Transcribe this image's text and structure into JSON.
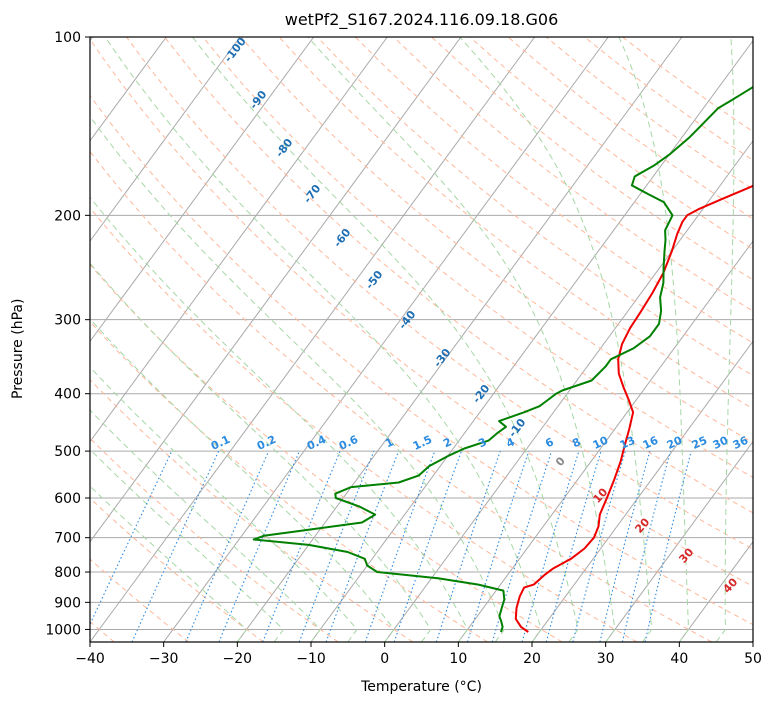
{
  "chart_data": {
    "type": "line",
    "title": "wetPf2_S167.2024.116.09.18.G06",
    "xlabel": "Temperature (°C)",
    "ylabel": "Pressure (hPa)",
    "xlim": [
      -40,
      50
    ],
    "ylim": [
      1050,
      100
    ],
    "yscale": "log",
    "x_ticks": [
      -40,
      -30,
      -20,
      -10,
      0,
      10,
      20,
      30,
      40,
      50
    ],
    "y_ticks": [
      1000,
      900,
      800,
      700,
      600,
      500,
      400,
      300,
      200,
      100
    ],
    "grid": true,
    "series": [
      {
        "color": "#ee0000",
        "points": [
          [
            18.5,
            1010
          ],
          [
            17.0,
            990
          ],
          [
            15.5,
            960
          ],
          [
            14.5,
            920
          ],
          [
            13.8,
            880
          ],
          [
            13.5,
            850
          ],
          [
            14.5,
            840
          ],
          [
            15.0,
            810
          ],
          [
            15.5,
            790
          ],
          [
            17.0,
            760
          ],
          [
            17.8,
            730
          ],
          [
            18.0,
            700
          ],
          [
            17.5,
            670
          ],
          [
            16.5,
            640
          ],
          [
            15.8,
            600
          ],
          [
            15.0,
            560
          ],
          [
            14.0,
            520
          ],
          [
            13.0,
            490
          ],
          [
            12.0,
            460
          ],
          [
            10.8,
            430
          ],
          [
            9.0,
            410
          ],
          [
            7.0,
            390
          ],
          [
            5.0,
            370
          ],
          [
            3.5,
            350
          ],
          [
            2.5,
            330
          ],
          [
            2.0,
            310
          ],
          [
            1.8,
            290
          ],
          [
            1.5,
            270
          ],
          [
            1.0,
            250
          ],
          [
            0.0,
            230
          ],
          [
            -1.0,
            215
          ],
          [
            -1.5,
            205
          ],
          [
            -1.5,
            200
          ],
          [
            -0.5,
            195
          ],
          [
            1.5,
            188
          ],
          [
            4.0,
            180
          ],
          [
            7.0,
            170
          ],
          [
            9.5,
            160
          ],
          [
            11.0,
            150
          ],
          [
            12.0,
            140
          ],
          [
            12.5,
            135
          ],
          [
            13.0,
            130
          ],
          [
            13.5,
            125
          ],
          [
            14.0,
            120
          ],
          [
            15.0,
            115
          ],
          [
            16.0,
            110
          ],
          [
            16.5,
            105
          ],
          [
            17.0,
            100
          ]
        ]
      },
      {
        "color": "#008000",
        "points": [
          [
            14.8,
            1010
          ],
          [
            14.5,
            990
          ],
          [
            13.8,
            970
          ],
          [
            13.0,
            950
          ],
          [
            12.5,
            920
          ],
          [
            12.0,
            890
          ],
          [
            11.0,
            860
          ],
          [
            7.0,
            840
          ],
          [
            1.0,
            820
          ],
          [
            -8.0,
            800
          ],
          [
            -10.0,
            780
          ],
          [
            -11.0,
            760
          ],
          [
            -14.0,
            740
          ],
          [
            -20.0,
            720
          ],
          [
            -28.0,
            705
          ],
          [
            -27.0,
            695
          ],
          [
            -22.0,
            680
          ],
          [
            -15.0,
            660
          ],
          [
            -14.0,
            640
          ],
          [
            -17.0,
            620
          ],
          [
            -21.0,
            600
          ],
          [
            -21.5,
            590
          ],
          [
            -20.0,
            575
          ],
          [
            -14.0,
            565
          ],
          [
            -12.0,
            550
          ],
          [
            -11.5,
            530
          ],
          [
            -10.0,
            510
          ],
          [
            -8.5,
            495
          ],
          [
            -6.0,
            480
          ],
          [
            -5.5,
            465
          ],
          [
            -5.0,
            455
          ],
          [
            -6.5,
            445
          ],
          [
            -4.0,
            430
          ],
          [
            -2.5,
            420
          ],
          [
            -2.0,
            410
          ],
          [
            -1.5,
            400
          ],
          [
            -1.0,
            395
          ],
          [
            2.0,
            380
          ],
          [
            2.5,
            360
          ],
          [
            2.5,
            350
          ],
          [
            4.5,
            335
          ],
          [
            5.5,
            320
          ],
          [
            5.5,
            305
          ],
          [
            4.5,
            290
          ],
          [
            3.0,
            275
          ],
          [
            2.0,
            260
          ],
          [
            0.5,
            245
          ],
          [
            -1.0,
            230
          ],
          [
            -2.0,
            220
          ],
          [
            -3.0,
            212
          ],
          [
            -3.5,
            200
          ],
          [
            -6.0,
            190
          ],
          [
            -9.0,
            184
          ],
          [
            -12.0,
            178
          ],
          [
            -12.5,
            172
          ],
          [
            -11.0,
            165
          ],
          [
            -10.0,
            158
          ],
          [
            -9.0,
            148
          ],
          [
            -8.5,
            140
          ],
          [
            -8.0,
            132
          ],
          [
            -7.0,
            128
          ],
          [
            -6.0,
            124
          ],
          [
            -5.0,
            120
          ],
          [
            -4.5,
            116
          ],
          [
            -3.5,
            112
          ],
          [
            -2.0,
            108
          ],
          [
            -0.5,
            104
          ],
          [
            0.0,
            100
          ]
        ]
      }
    ],
    "dry_adiabat_labels": [
      "-100",
      "-90",
      "-80",
      "-70",
      "-60",
      "-50",
      "-40",
      "-30",
      "-20",
      "-10"
    ],
    "mixing_ratio_labels": [
      "0.1",
      "0.2",
      "0.4",
      "0.6",
      "1",
      "1.5",
      "2",
      "3",
      "4",
      "6",
      "8",
      "10",
      "13",
      "16",
      "20",
      "25",
      "30",
      "36"
    ],
    "moist_adiabat_labels": [
      "0",
      "10",
      "20",
      "30",
      "40"
    ],
    "colors": {
      "temperature": "#ee0000",
      "dewpoint": "#008000",
      "isotherm": "#aaaaaa",
      "dry_adiabat": "#ffb79a",
      "moist_adiabat": "#a6d7a6",
      "mixing_ratio": "#2b8be0",
      "label_blue": "#1f6fb4",
      "label_red": "#d62728"
    }
  }
}
